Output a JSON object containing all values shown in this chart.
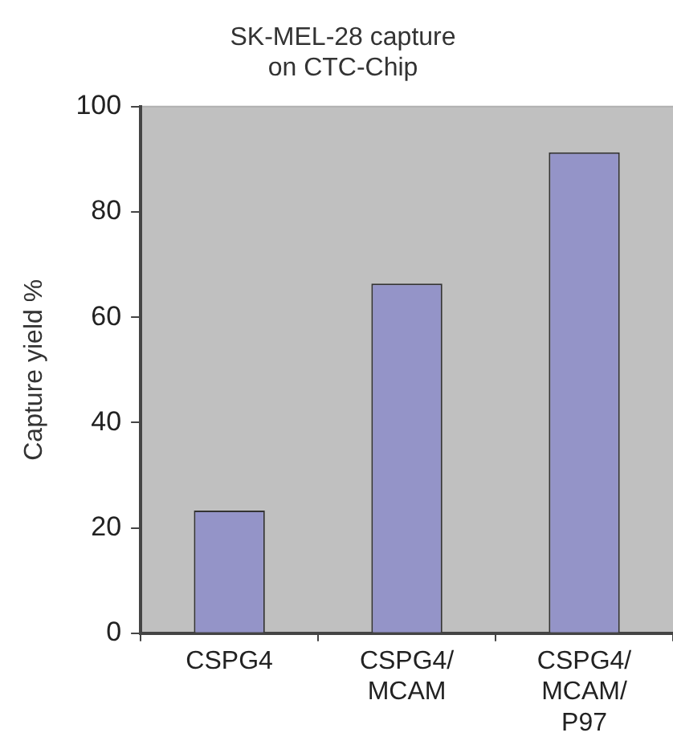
{
  "chart_data": {
    "type": "bar",
    "title": "SK-MEL-28 capture\non CTC-Chip",
    "ylabel": "Capture yield %",
    "categories": [
      "CSPG4",
      "CSPG4/MCAM",
      "CSPG4/MCAM/P97"
    ],
    "values": [
      23.3,
      66.4,
      91.3
    ],
    "color": "#9494c8",
    "ylim": [
      0,
      100
    ],
    "yticks": [
      0,
      20,
      40,
      60,
      80,
      100
    ],
    "grid": false,
    "legend": false
  }
}
